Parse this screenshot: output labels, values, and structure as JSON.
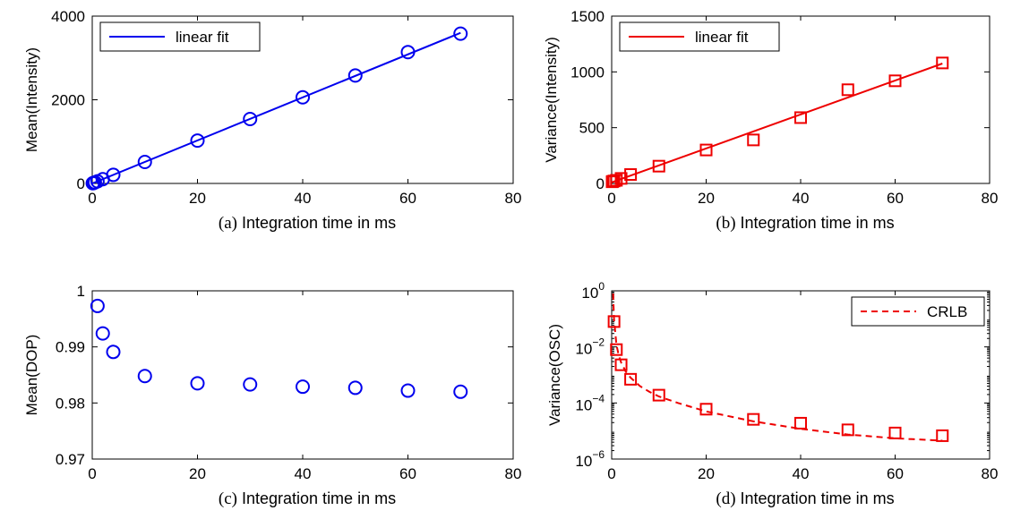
{
  "chart_data": [
    {
      "id": "a",
      "type": "scatter",
      "caption_letter": "(a)",
      "caption_text": "Integration time in ms",
      "ylabel": "Mean(Intensity)",
      "xlim": [
        0,
        80
      ],
      "ylim": [
        0,
        4000
      ],
      "yscale": "linear",
      "xticks": [
        0,
        20,
        40,
        60,
        80
      ],
      "yticks": [
        0,
        2000,
        4000
      ],
      "ytick_labels": [
        "0",
        "2000",
        "4000"
      ],
      "color": "#0000ee",
      "marker": "circle",
      "x": [
        0.1,
        0.2,
        0.5,
        1,
        2,
        4,
        10,
        20,
        30,
        40,
        50,
        60,
        70
      ],
      "y": [
        5,
        10,
        25,
        51,
        102,
        205,
        513,
        1025,
        1540,
        2060,
        2580,
        3140,
        3580
      ],
      "fit": {
        "name": "linear fit",
        "style": "solid",
        "x": [
          0,
          70
        ],
        "y": [
          0,
          3600
        ]
      },
      "legend": {
        "position": "top-left",
        "entries": [
          "linear fit"
        ]
      }
    },
    {
      "id": "b",
      "type": "scatter",
      "caption_letter": "(b)",
      "caption_text": "Integration time in ms",
      "ylabel": "Variance(Intensity)",
      "xlim": [
        0,
        80
      ],
      "ylim": [
        0,
        1500
      ],
      "yscale": "linear",
      "xticks": [
        0,
        20,
        40,
        60,
        80
      ],
      "yticks": [
        0,
        500,
        1000,
        1500
      ],
      "ytick_labels": [
        "0",
        "500",
        "1000",
        "1500"
      ],
      "color": "#ee0000",
      "marker": "square",
      "x": [
        0.1,
        0.2,
        0.5,
        1,
        2,
        4,
        10,
        20,
        30,
        40,
        50,
        60,
        70
      ],
      "y": [
        15,
        18,
        22,
        28,
        45,
        80,
        155,
        300,
        390,
        590,
        840,
        920,
        1080
      ],
      "fit": {
        "name": "linear fit",
        "style": "solid",
        "x": [
          0,
          70
        ],
        "y": [
          10,
          1075
        ]
      },
      "legend": {
        "position": "top-left",
        "entries": [
          "linear fit"
        ]
      }
    },
    {
      "id": "c",
      "type": "scatter",
      "caption_letter": "(c)",
      "caption_text": "Integration time in ms",
      "ylabel": "Mean(DOP)",
      "xlim": [
        0,
        80
      ],
      "ylim": [
        0.97,
        1
      ],
      "yscale": "linear",
      "xticks": [
        0,
        20,
        40,
        60,
        80
      ],
      "yticks": [
        0.97,
        0.98,
        0.99,
        1
      ],
      "ytick_labels": [
        "0.97",
        "0.98",
        "0.99",
        "1"
      ],
      "color": "#0000ee",
      "marker": "circle",
      "x": [
        1,
        2,
        4,
        10,
        20,
        30,
        40,
        50,
        60,
        70
      ],
      "y": [
        0.9973,
        0.9924,
        0.9891,
        0.9848,
        0.9835,
        0.9833,
        0.9829,
        0.9827,
        0.9822,
        0.982
      ],
      "fit": null,
      "legend": null
    },
    {
      "id": "d",
      "type": "scatter",
      "caption_letter": "(d)",
      "caption_text": "Integration time in ms",
      "ylabel": "Variance(OSC)",
      "xlim": [
        0,
        80
      ],
      "ylim": [
        1e-06,
        1
      ],
      "yscale": "log",
      "xticks": [
        0,
        20,
        40,
        60,
        80
      ],
      "yticks": [
        1e-06,
        0.0001,
        0.01,
        1
      ],
      "ytick_labels": [
        [
          "10",
          "−6"
        ],
        [
          "10",
          "−4"
        ],
        [
          "10",
          "−2"
        ],
        [
          "10",
          "0"
        ]
      ],
      "color": "#ee0000",
      "marker": "square",
      "x": [
        0.5,
        1,
        2,
        4,
        10,
        20,
        30,
        40,
        50,
        60,
        70
      ],
      "y": [
        0.08,
        0.008,
        0.0023,
        0.0007,
        0.00019,
        6e-05,
        2.6e-05,
        1.9e-05,
        1.1e-05,
        8.5e-06,
        6.8e-06
      ],
      "fit": {
        "name": "CRLB",
        "style": "dashed",
        "x": [
          0.3,
          0.5,
          1,
          1.5,
          2,
          3,
          4,
          6,
          8,
          10,
          14,
          20,
          30,
          40,
          50,
          60,
          70
        ],
        "y": [
          0.8,
          0.1,
          0.012,
          0.005,
          0.0028,
          0.0013,
          0.0008,
          0.0004,
          0.00025,
          0.00017,
          0.0001,
          5e-05,
          2.2e-05,
          1.2e-05,
          7.5e-06,
          5.5e-06,
          4.5e-06
        ]
      },
      "legend": {
        "position": "top-right",
        "entries": [
          "CRLB"
        ]
      }
    }
  ]
}
